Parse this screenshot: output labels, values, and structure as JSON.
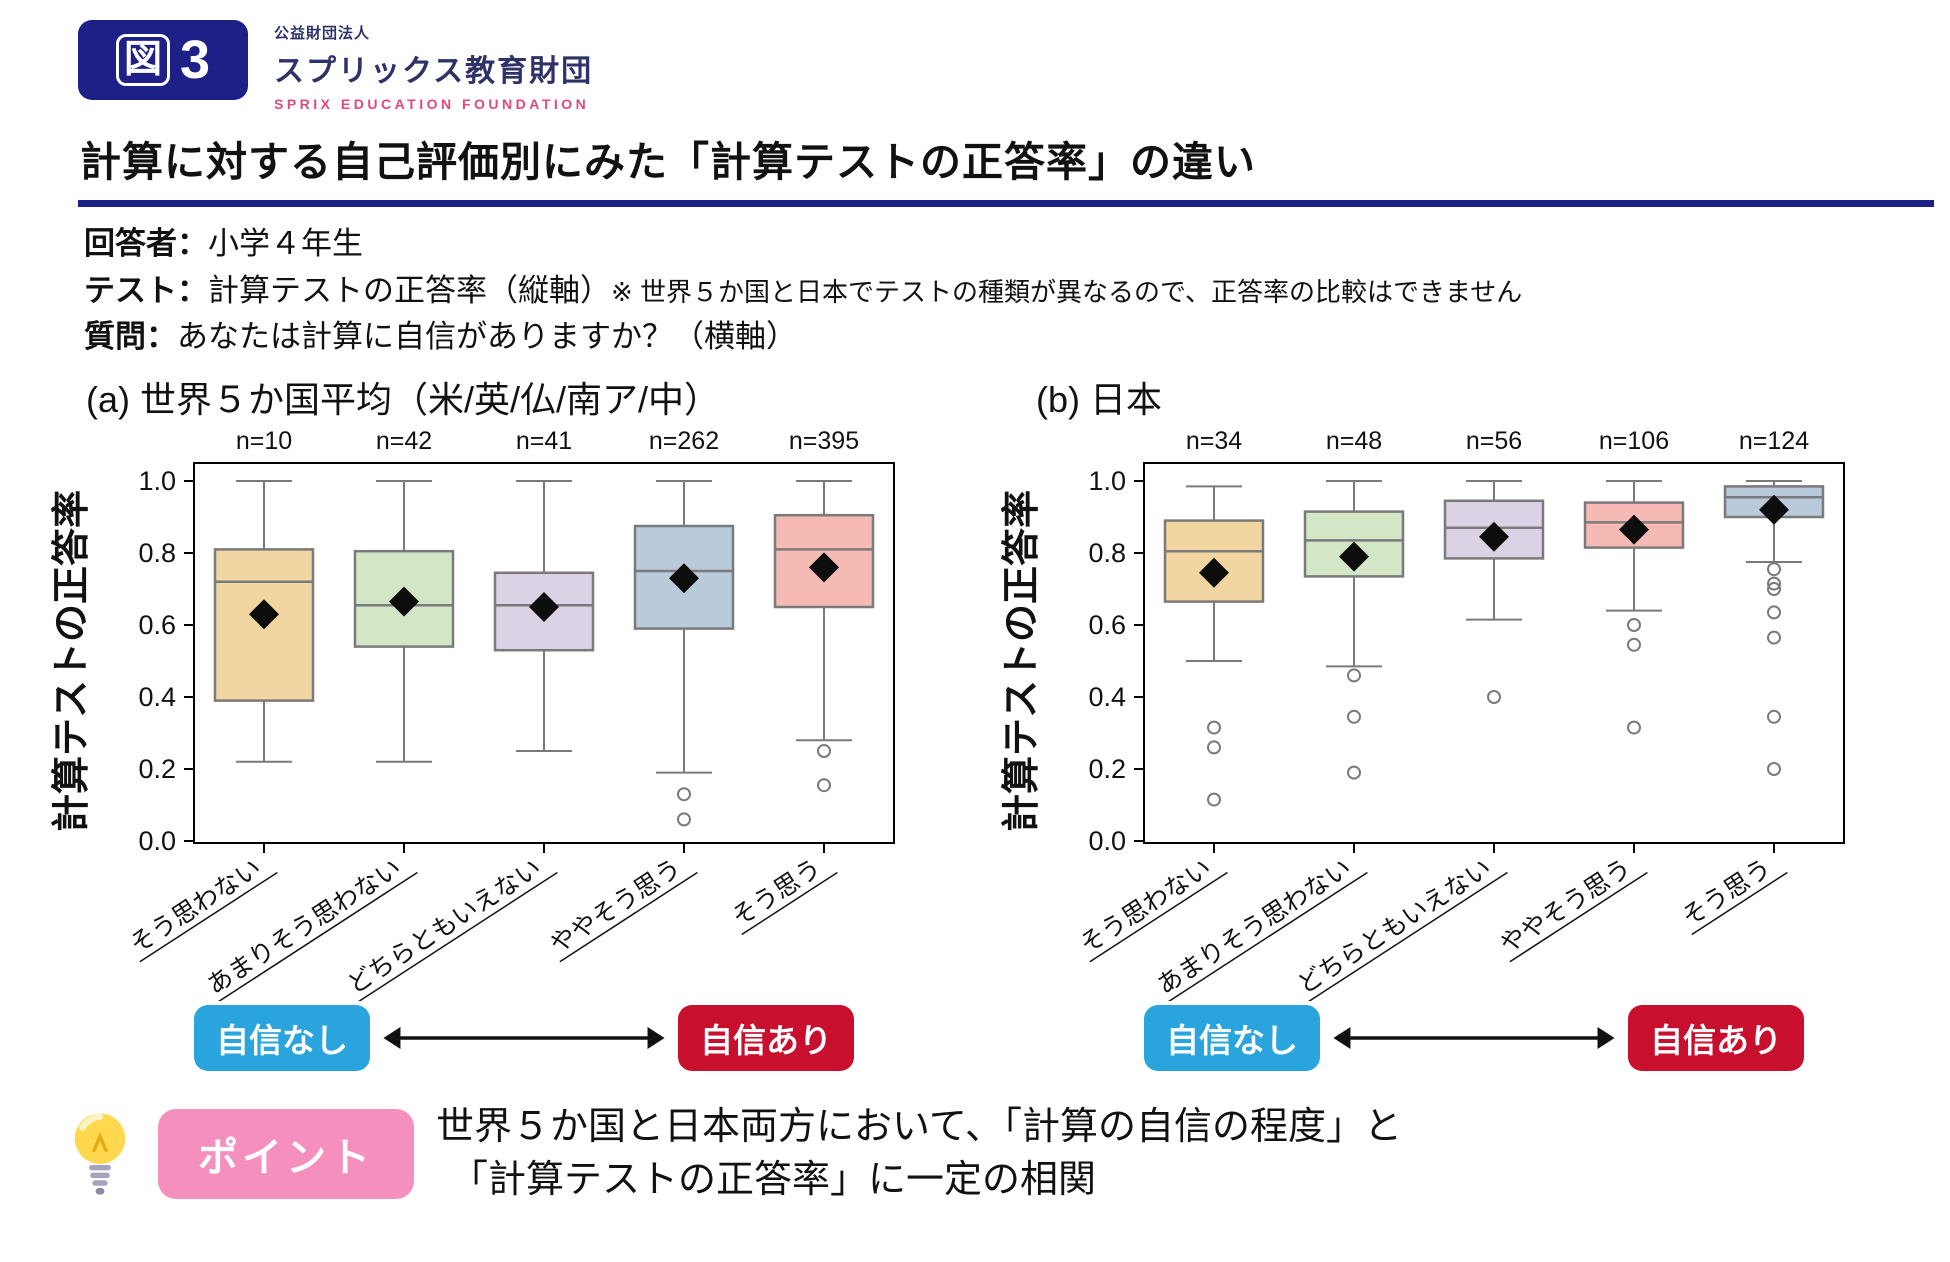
{
  "header": {
    "figure_char": "図",
    "figure_num": "3",
    "org_small": "公益財団法人",
    "org_name": "スプリックス教育財団",
    "org_en": "SPRIX EDUCATION FOUNDATION"
  },
  "title": "計算に対する自己評価別にみた「計算テストの正答率」の違い",
  "meta": {
    "respondent_label": "回答者：",
    "respondent": "小学４年生",
    "test_label": "テスト：",
    "test": "計算テストの正答率（縦軸）",
    "test_note": "※ 世界５か国と日本でテストの種類が異なるので、正答率の比較はできません",
    "question_label": "質問：",
    "question": "あなたは計算に自信がありますか？（横軸）"
  },
  "scale_legend": {
    "left": "自信なし",
    "right": "自信あり"
  },
  "point": {
    "badge": "ポイント",
    "line1": "世界５か国と日本両方において、「計算の自信の程度」と",
    "line2": "「計算テストの正答率」に一定の相関"
  },
  "colors": {
    "accent_navy": "#1d2087",
    "logo_navy": "#2e3268",
    "logo_pink": "#e0487f",
    "badge_blue": "#29a4dd",
    "badge_red": "#c8102e",
    "point_pink": "#f590be",
    "box_border": "#7a7a7a",
    "mean_marker": "#0d0d0d"
  },
  "chart_data": [
    {
      "type": "boxplot",
      "panel": "a",
      "title_prefix": "(a)",
      "title": "世界５か国平均（米/英/仏/南ア/中）",
      "ylabel": "計算テストの正答率",
      "ylim": [
        0.0,
        1.0
      ],
      "yticks": [
        0.0,
        0.2,
        0.4,
        0.6,
        0.8,
        1.0
      ],
      "grid": false,
      "categories": [
        "そう思わない",
        "あまりそう思わない",
        "どちらともいえない",
        "ややそう思う",
        "そう思う"
      ],
      "series": [
        {
          "label": "そう思わない",
          "n": 10,
          "color": "#f1d6a2",
          "low": 0.22,
          "q1": 0.39,
          "median": 0.72,
          "q3": 0.81,
          "high": 1.0,
          "mean": 0.63,
          "outliers": []
        },
        {
          "label": "あまりそう思わない",
          "n": 42,
          "color": "#d3e7c6",
          "low": 0.22,
          "q1": 0.54,
          "median": 0.655,
          "q3": 0.805,
          "high": 1.0,
          "mean": 0.665,
          "outliers": []
        },
        {
          "label": "どちらともいえない",
          "n": 41,
          "color": "#dcd2e5",
          "low": 0.25,
          "q1": 0.53,
          "median": 0.655,
          "q3": 0.745,
          "high": 1.0,
          "mean": 0.65,
          "outliers": []
        },
        {
          "label": "ややそう思う",
          "n": 262,
          "color": "#b9cbdb",
          "low": 0.19,
          "q1": 0.59,
          "median": 0.75,
          "q3": 0.875,
          "high": 1.0,
          "mean": 0.73,
          "outliers": [
            0.13,
            0.06
          ]
        },
        {
          "label": "そう思う",
          "n": 395,
          "color": "#f5bab4",
          "low": 0.28,
          "q1": 0.65,
          "median": 0.81,
          "q3": 0.905,
          "high": 1.0,
          "mean": 0.76,
          "outliers": [
            0.25,
            0.155
          ]
        }
      ]
    },
    {
      "type": "boxplot",
      "panel": "b",
      "title_prefix": "(b)",
      "title": "日本",
      "ylabel": "計算テストの正答率",
      "ylim": [
        0.0,
        1.0
      ],
      "yticks": [
        0.0,
        0.2,
        0.4,
        0.6,
        0.8,
        1.0
      ],
      "grid": false,
      "categories": [
        "そう思わない",
        "あまりそう思わない",
        "どちらともいえない",
        "ややそう思う",
        "そう思う"
      ],
      "series": [
        {
          "label": "そう思わない",
          "n": 34,
          "color": "#f1d6a2",
          "low": 0.5,
          "q1": 0.665,
          "median": 0.805,
          "q3": 0.89,
          "high": 0.985,
          "mean": 0.745,
          "outliers": [
            0.315,
            0.26,
            0.115
          ]
        },
        {
          "label": "あまりそう思わない",
          "n": 48,
          "color": "#d3e7c6",
          "low": 0.485,
          "q1": 0.735,
          "median": 0.835,
          "q3": 0.915,
          "high": 1.0,
          "mean": 0.79,
          "outliers": [
            0.46,
            0.345,
            0.19
          ]
        },
        {
          "label": "どちらともいえない",
          "n": 56,
          "color": "#dcd2e5",
          "low": 0.615,
          "q1": 0.785,
          "median": 0.87,
          "q3": 0.945,
          "high": 1.0,
          "mean": 0.845,
          "outliers": [
            0.4
          ]
        },
        {
          "label": "ややそう思う",
          "n": 106,
          "color": "#f5bab4",
          "low": 0.64,
          "q1": 0.815,
          "median": 0.885,
          "q3": 0.94,
          "high": 1.0,
          "mean": 0.865,
          "outliers": [
            0.6,
            0.545,
            0.315
          ]
        },
        {
          "label": "そう思う",
          "n": 124,
          "color": "#b9cbdb",
          "low": 0.775,
          "q1": 0.9,
          "median": 0.955,
          "q3": 0.985,
          "high": 1.0,
          "mean": 0.92,
          "outliers": [
            0.755,
            0.715,
            0.7,
            0.635,
            0.565,
            0.345,
            0.2
          ]
        }
      ]
    }
  ]
}
